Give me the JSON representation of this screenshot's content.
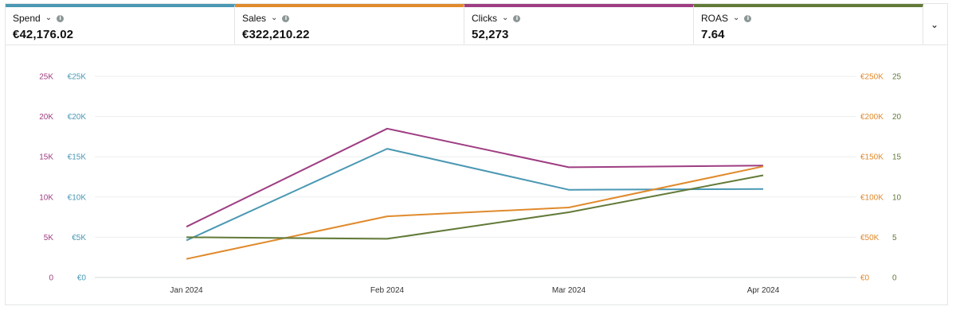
{
  "metrics": [
    {
      "label": "Spend",
      "value": "€42,176.02",
      "color": "#4a98b3"
    },
    {
      "label": "Sales",
      "value": "€322,210.22",
      "color": "#e08a2c"
    },
    {
      "label": "Clicks",
      "value": "52,273",
      "color": "#9e3d82"
    },
    {
      "label": "ROAS",
      "value": "7.64",
      "color": "#627a38"
    }
  ],
  "icons": {
    "dropdown": "chevron-down-icon",
    "info": "info-icon",
    "expand": "chevron-down-icon"
  },
  "chart_data": {
    "type": "line",
    "categories": [
      "Jan 2024",
      "Feb 2024",
      "Mar 2024",
      "Apr 2024"
    ],
    "axes": {
      "left_outer": {
        "series": "Clicks",
        "min": 0,
        "max": 25000,
        "ticks": [
          "0",
          "5K",
          "10K",
          "15K",
          "20K",
          "25K"
        ],
        "color": "#9e3d82"
      },
      "left_inner": {
        "series": "Spend",
        "min": 0,
        "max": 25000,
        "ticks": [
          "€0",
          "€5K",
          "€10K",
          "€15K",
          "€20K",
          "€25K"
        ],
        "color": "#4a98b3"
      },
      "right_inner": {
        "series": "Sales",
        "min": 0,
        "max": 250000,
        "ticks": [
          "€0",
          "€50K",
          "€100K",
          "€150K",
          "€200K",
          "€250K"
        ],
        "color": "#e08a2c"
      },
      "right_outer": {
        "series": "ROAS",
        "min": 0,
        "max": 25,
        "ticks": [
          "0",
          "5",
          "10",
          "15",
          "20",
          "25"
        ],
        "color": "#627a38"
      }
    },
    "series": [
      {
        "name": "Clicks",
        "axis": "left_outer",
        "color": "#9e3d82",
        "values": [
          6300,
          18500,
          13700,
          13900
        ]
      },
      {
        "name": "Spend",
        "axis": "left_inner",
        "color": "#4a98b3",
        "values": [
          4600,
          16000,
          10900,
          11000
        ]
      },
      {
        "name": "Sales",
        "axis": "right_inner",
        "color": "#e08a2c",
        "values": [
          23000,
          76000,
          87000,
          138000
        ]
      },
      {
        "name": "ROAS",
        "axis": "right_outer",
        "color": "#627a38",
        "values": [
          5.0,
          4.8,
          8.1,
          12.7
        ]
      }
    ],
    "grid": true
  }
}
